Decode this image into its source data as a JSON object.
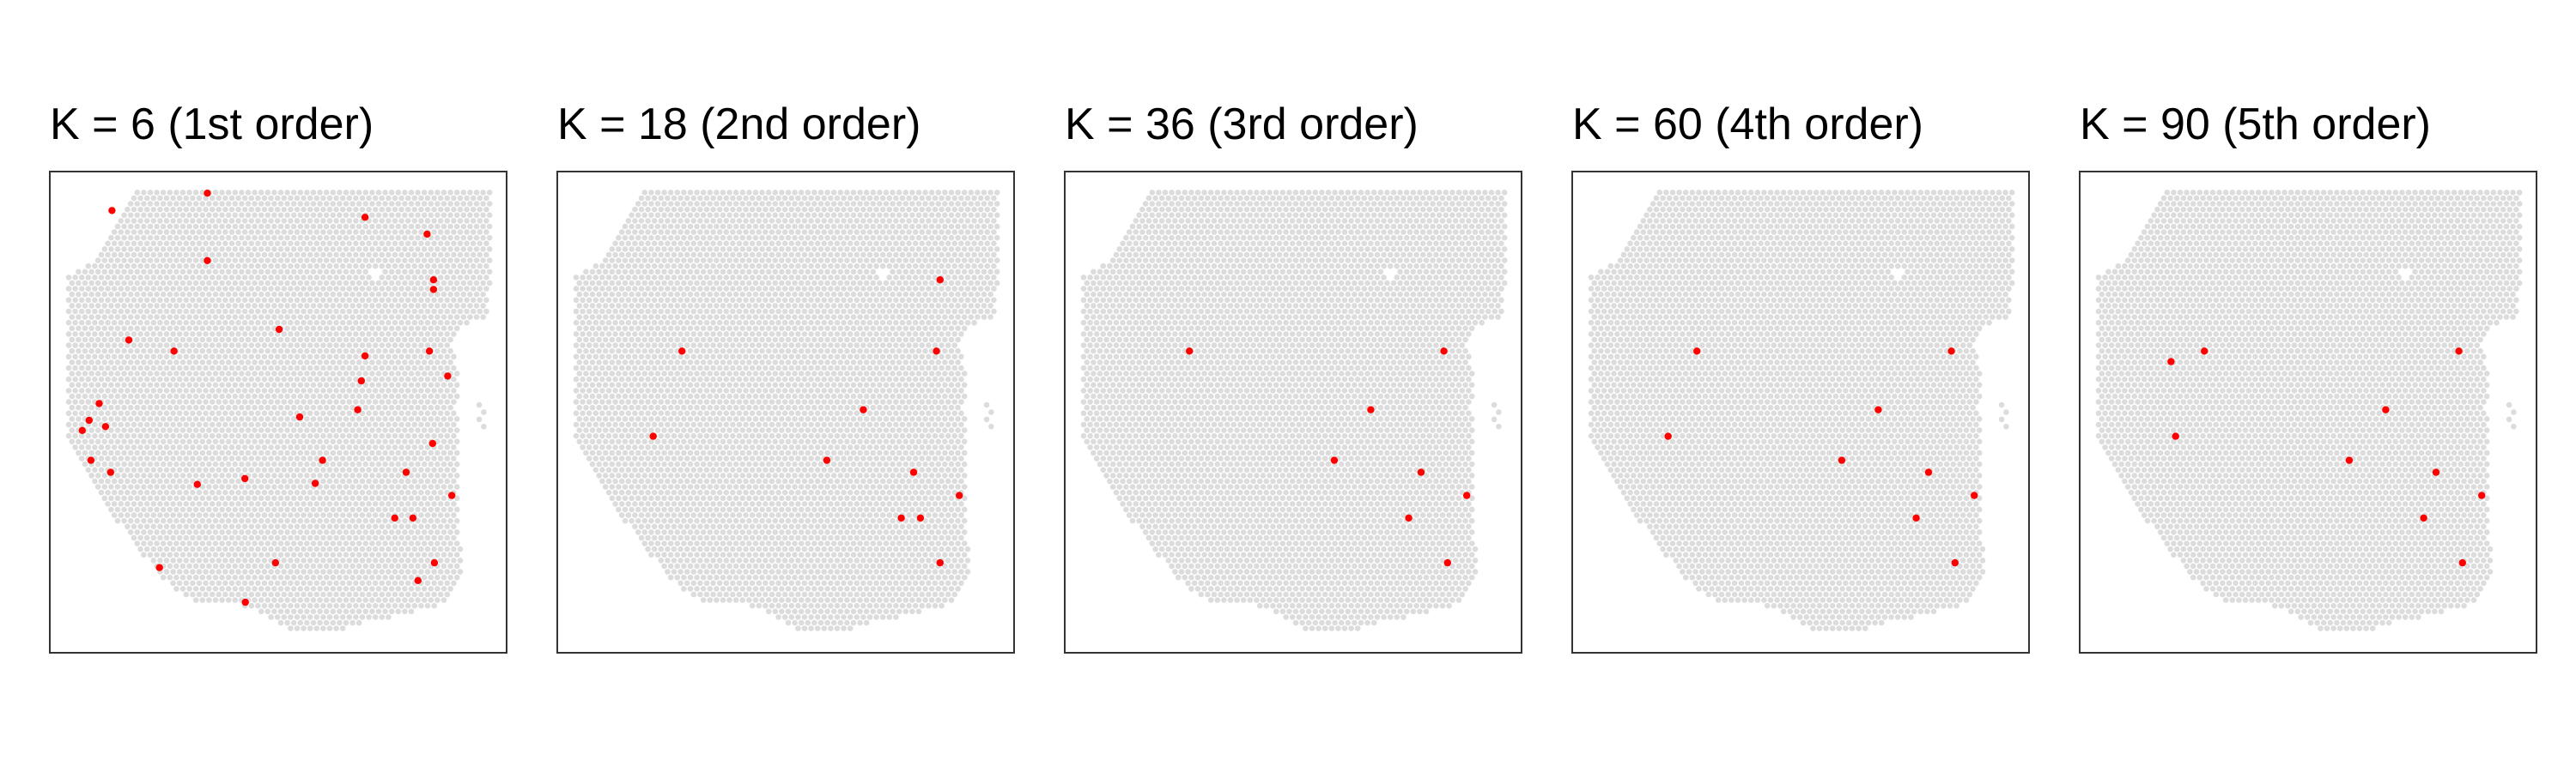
{
  "chart_data": {
    "type": "scatter",
    "x_axis_range": [
      0,
      1
    ],
    "y_axis_range": [
      0,
      1
    ],
    "grid": false,
    "legend": "none",
    "axes_visible": false,
    "colors": {
      "spot": "#dcdcdc",
      "highlight": "#ff0000",
      "frame": "#333333",
      "background": "#ffffff"
    },
    "panels": [
      {
        "title": "K = 6 (1st order)",
        "points": [
          [
            0.136,
            0.919
          ],
          [
            0.345,
            0.955
          ],
          [
            0.69,
            0.905
          ],
          [
            0.826,
            0.87
          ],
          [
            0.345,
            0.815
          ],
          [
            0.84,
            0.775
          ],
          [
            0.84,
            0.755
          ],
          [
            0.502,
            0.672
          ],
          [
            0.173,
            0.65
          ],
          [
            0.272,
            0.627
          ],
          [
            0.69,
            0.617
          ],
          [
            0.831,
            0.627
          ],
          [
            0.871,
            0.575
          ],
          [
            0.682,
            0.565
          ],
          [
            0.108,
            0.518
          ],
          [
            0.674,
            0.505
          ],
          [
            0.086,
            0.483
          ],
          [
            0.122,
            0.47
          ],
          [
            0.547,
            0.49
          ],
          [
            0.071,
            0.462
          ],
          [
            0.838,
            0.435
          ],
          [
            0.09,
            0.4
          ],
          [
            0.597,
            0.4
          ],
          [
            0.133,
            0.375
          ],
          [
            0.78,
            0.375
          ],
          [
            0.427,
            0.362
          ],
          [
            0.323,
            0.35
          ],
          [
            0.581,
            0.352
          ],
          [
            0.88,
            0.327
          ],
          [
            0.755,
            0.28
          ],
          [
            0.795,
            0.28
          ],
          [
            0.494,
            0.187
          ],
          [
            0.842,
            0.187
          ],
          [
            0.24,
            0.177
          ],
          [
            0.806,
            0.15
          ],
          [
            0.428,
            0.105
          ]
        ]
      },
      {
        "title": "K = 18 (2nd order)",
        "points": [
          [
            0.838,
            0.775
          ],
          [
            0.273,
            0.627
          ],
          [
            0.83,
            0.627
          ],
          [
            0.67,
            0.505
          ],
          [
            0.21,
            0.45
          ],
          [
            0.59,
            0.4
          ],
          [
            0.78,
            0.375
          ],
          [
            0.88,
            0.327
          ],
          [
            0.753,
            0.28
          ],
          [
            0.795,
            0.28
          ],
          [
            0.838,
            0.187
          ]
        ]
      },
      {
        "title": "K = 36 (3rd order)",
        "points": [
          [
            0.273,
            0.627
          ],
          [
            0.83,
            0.627
          ],
          [
            0.67,
            0.505
          ],
          [
            0.59,
            0.4
          ],
          [
            0.78,
            0.375
          ],
          [
            0.88,
            0.327
          ],
          [
            0.753,
            0.28
          ],
          [
            0.838,
            0.187
          ]
        ]
      },
      {
        "title": "K = 60 (4th order)",
        "points": [
          [
            0.273,
            0.627
          ],
          [
            0.83,
            0.627
          ],
          [
            0.67,
            0.505
          ],
          [
            0.21,
            0.45
          ],
          [
            0.59,
            0.4
          ],
          [
            0.78,
            0.375
          ],
          [
            0.88,
            0.327
          ],
          [
            0.753,
            0.28
          ],
          [
            0.838,
            0.187
          ]
        ]
      },
      {
        "title": "K = 90 (5th order)",
        "points": [
          [
            0.273,
            0.627
          ],
          [
            0.2,
            0.605
          ],
          [
            0.83,
            0.627
          ],
          [
            0.67,
            0.505
          ],
          [
            0.21,
            0.45
          ],
          [
            0.59,
            0.4
          ],
          [
            0.78,
            0.375
          ],
          [
            0.88,
            0.327
          ],
          [
            0.753,
            0.28
          ],
          [
            0.838,
            0.187
          ]
        ]
      }
    ]
  }
}
